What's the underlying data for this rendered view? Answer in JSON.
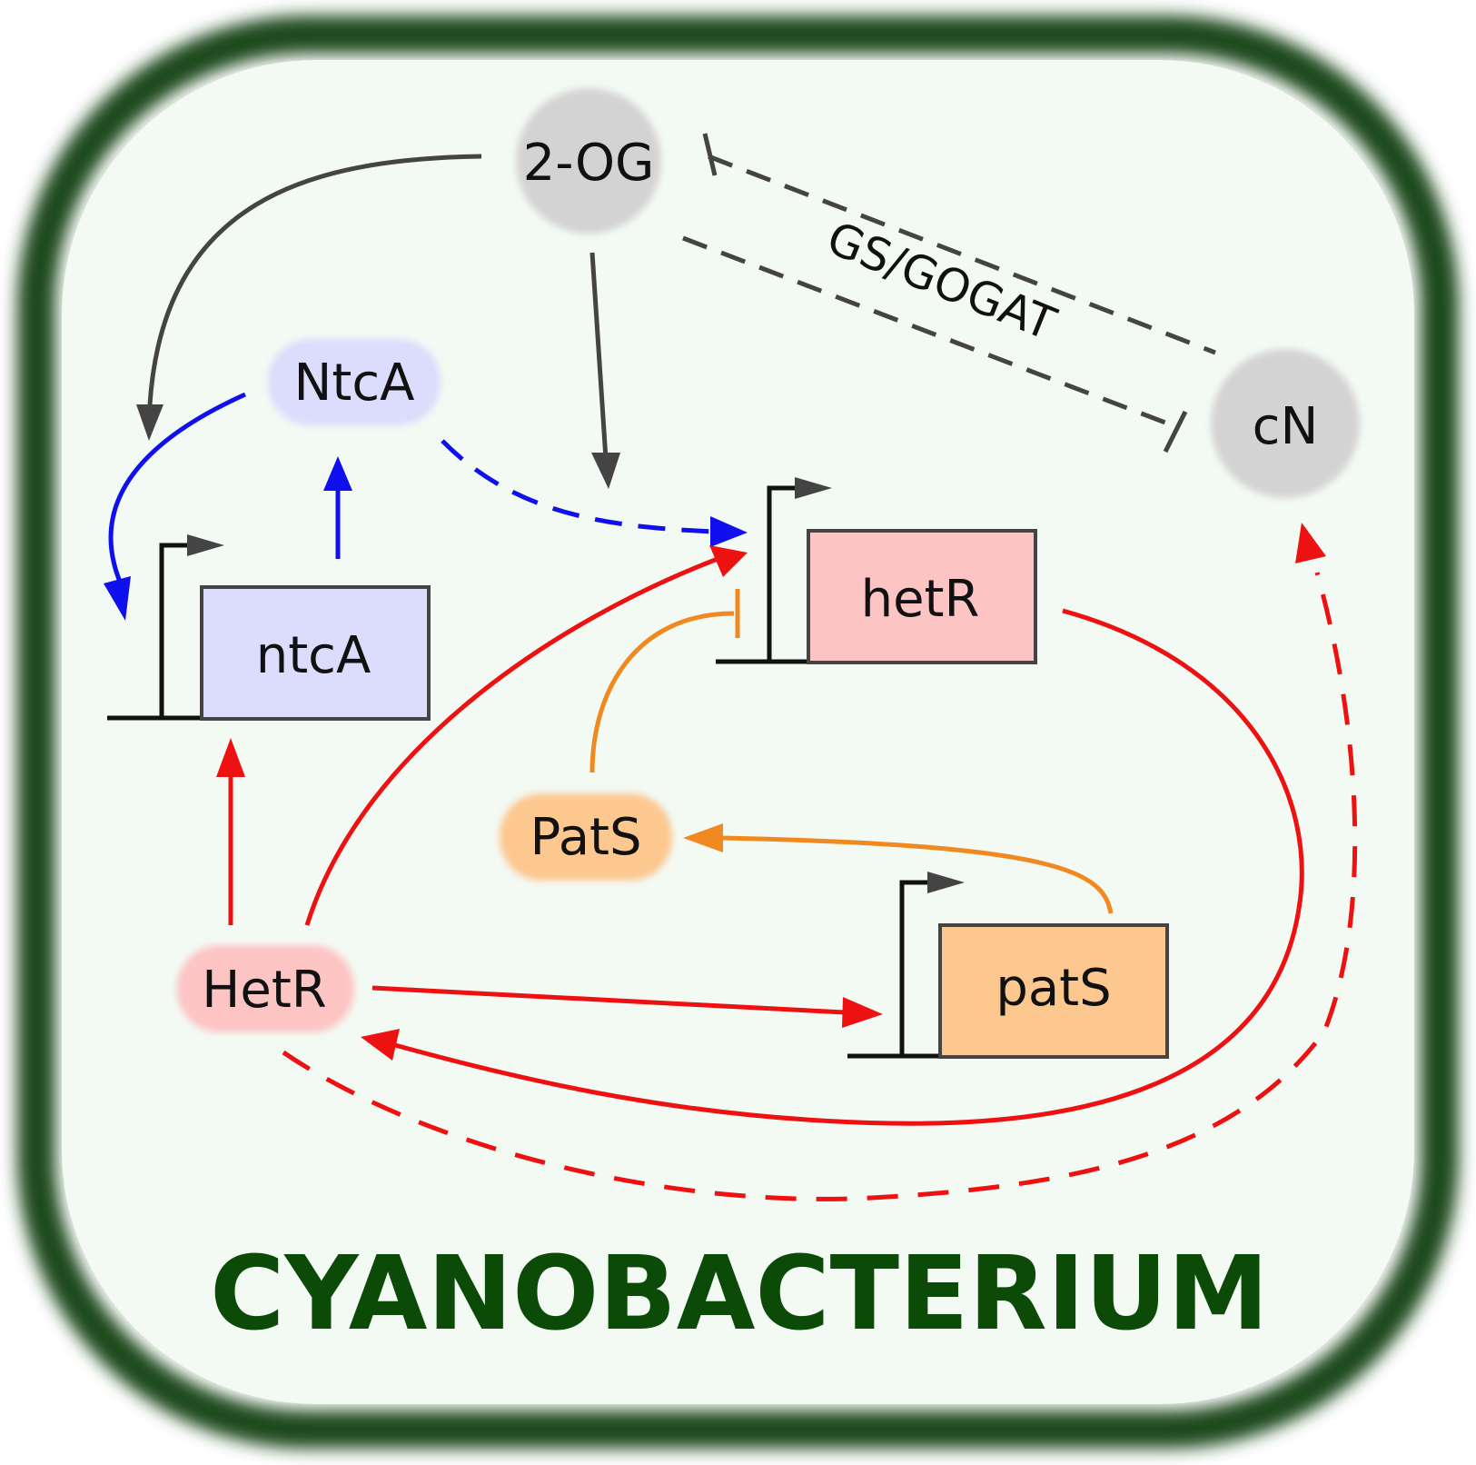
{
  "title": "CYANOBACTERIUM",
  "colors": {
    "wall": "#1d4a1f",
    "cytoplasm": "#f3faf4",
    "title": "#0c4a08",
    "metabolite": "#d3d3d3",
    "ntca": "#dcdcfc",
    "hetr": "#fdc4c4",
    "pats": "#fdc790",
    "black": "#111111",
    "grey": "#444444",
    "blue": "#1010ee",
    "red": "#ee1111",
    "orange": "#f08a20"
  },
  "metabolites": {
    "og": "2-OG",
    "cn": "cN"
  },
  "proteins": {
    "ntca": "NtcA",
    "hetr": "HetR",
    "pats": "PatS"
  },
  "genes": {
    "ntca": "ntcA",
    "hetr": "hetR",
    "pats": "patS"
  },
  "reaction_label": "GS/GOGAT"
}
